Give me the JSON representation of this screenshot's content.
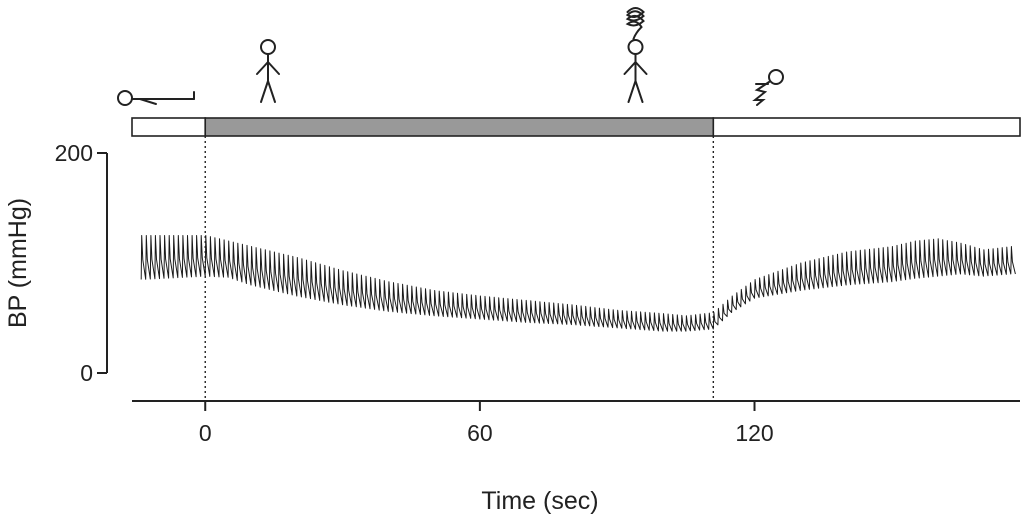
{
  "chart_data": {
    "type": "line",
    "title": "",
    "xlabel": "Time (sec)",
    "ylabel": "BP (mmHg)",
    "xlim": [
      -16,
      178
    ],
    "ylim": [
      0,
      200
    ],
    "x_ticks": [
      0,
      60,
      120
    ],
    "x_tick_labels": [
      "0",
      "60",
      "120"
    ],
    "y_ticks": [
      0,
      200
    ],
    "y_tick_labels": [
      "0",
      "200"
    ],
    "grid": false,
    "legend": "none",
    "tilt_phases": [
      {
        "name": "supine",
        "start": -16,
        "end": 0,
        "fill": "#ffffff",
        "icon": "supine-person-icon"
      },
      {
        "name": "head-up tilt",
        "start": 0,
        "end": 111,
        "fill": "#999999",
        "icon": "standing-person-icon"
      },
      {
        "name": "recovery",
        "start": 111,
        "end": 178,
        "fill": "#ffffff",
        "icon": "fainting-person-icon"
      }
    ],
    "event_markers": [
      {
        "x": 0,
        "style": "dotted"
      },
      {
        "x": 111,
        "style": "dotted"
      }
    ],
    "presyncope_icon_x": 94,
    "series": [
      {
        "color": "#1a1a1a",
        "beat_period_sec": 1.0,
        "systolic": {
          "x": [
            -14,
            0,
            5,
            10,
            20,
            30,
            40,
            50,
            60,
            70,
            80,
            90,
            100,
            105,
            111,
            115,
            120,
            130,
            140,
            150,
            155,
            160,
            165,
            170,
            176
          ],
          "y": [
            125,
            125,
            120,
            115,
            105,
            93,
            83,
            75,
            70,
            66,
            62,
            57,
            54,
            52,
            55,
            70,
            85,
            100,
            110,
            115,
            120,
            122,
            118,
            112,
            115
          ]
        },
        "diastolic": {
          "x": [
            -14,
            0,
            5,
            10,
            20,
            30,
            40,
            50,
            60,
            70,
            80,
            90,
            100,
            105,
            111,
            115,
            120,
            130,
            140,
            150,
            155,
            160,
            165,
            170,
            176
          ],
          "y": [
            85,
            88,
            87,
            80,
            70,
            62,
            56,
            52,
            49,
            46,
            44,
            41,
            38,
            38,
            40,
            55,
            68,
            75,
            80,
            83,
            86,
            88,
            90,
            88,
            90
          ]
        }
      }
    ]
  }
}
